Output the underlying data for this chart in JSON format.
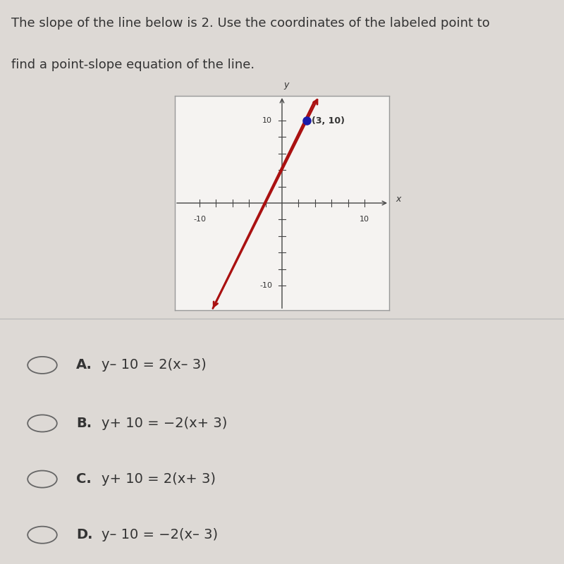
{
  "title_line1": "The slope of the line below is 2. Use the coordinates of the labeled point to",
  "title_line2": "find a point-slope equation of the line.",
  "bg_color": "#ddd9d5",
  "graph_bg_color": "#f5f3f1",
  "graph_border_color": "#999999",
  "slope": 2,
  "point_x": 3,
  "point_y": 10,
  "point_color": "#1a1aaa",
  "point_label": "(3, 10)",
  "line_color": "#aa1111",
  "axis_color": "#444444",
  "xlim": [
    -13,
    13
  ],
  "ylim": [
    -13,
    13
  ],
  "choices": [
    [
      "A.",
      "y– 10 = 2(x– 3)"
    ],
    [
      "B.",
      "y+ 10 = −2(x+ 3)"
    ],
    [
      "C.",
      "y+ 10 = 2(x+ 3)"
    ],
    [
      "D.",
      "y– 10 = −2(x– 3)"
    ]
  ],
  "choice_fontsize": 14,
  "title_fontsize": 13,
  "text_color": "#333333",
  "divider_color": "#bbbbbb",
  "tick_label_fontsize": 8,
  "x_label_ticks": [
    -10,
    10
  ],
  "y_label_ticks": [
    -10,
    10
  ],
  "all_ticks": [
    -10,
    -8,
    -6,
    -4,
    -2,
    2,
    4,
    6,
    8,
    10
  ]
}
